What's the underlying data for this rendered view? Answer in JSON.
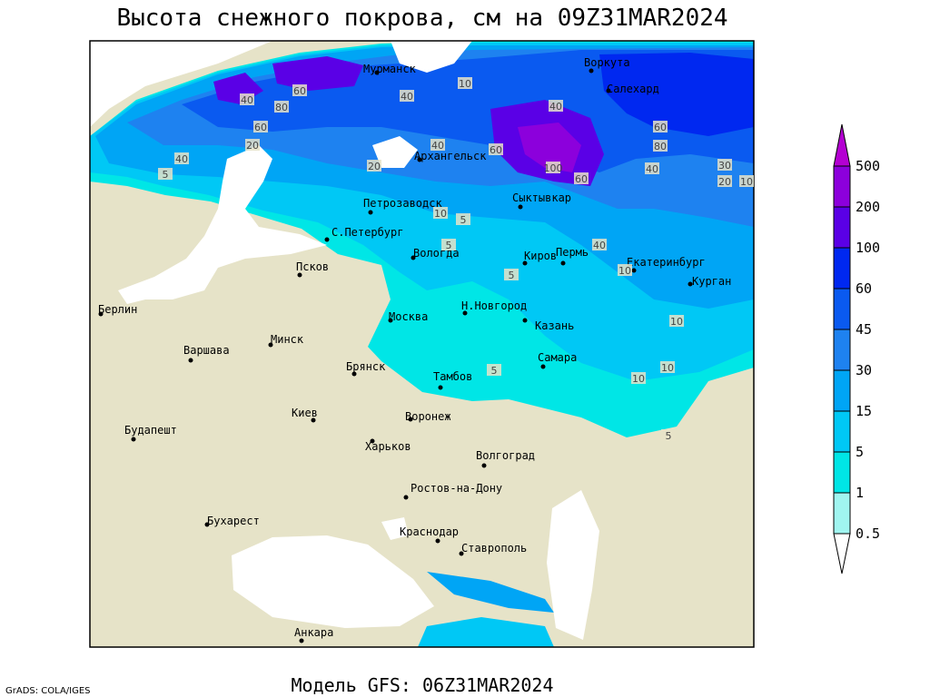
{
  "title": "Высота снежного покрова, см на 09Z31MAR2024",
  "footer": "Модель GFS: 06Z31MAR2024",
  "credit": "GrADS: COLA/IGES",
  "map": {
    "cities": [
      "Мурманск",
      "Воркута",
      "Салехард",
      "Архангельск",
      "Сыктывкар",
      "Петрозаводск",
      "С.Петербург",
      "Вологда",
      "Киров",
      "Пермь",
      "Екатеринбург",
      "Курган",
      "Псков",
      "Берлин",
      "Н.Новгород",
      "Казань",
      "Москва",
      "Минск",
      "Варшава",
      "Самара",
      "Брянск",
      "Тамбов",
      "Киев",
      "Воронеж",
      "Будапешт",
      "Харьков",
      "Волгоград",
      "Ростов-на-Дону",
      "Бухарест",
      "Краснодар",
      "Ставрополь",
      "Анкара"
    ],
    "contour_labels": [
      40,
      60,
      80,
      60,
      40,
      20,
      5,
      40,
      10,
      20,
      40,
      60,
      100,
      60,
      40,
      20,
      10,
      30,
      40,
      60,
      80,
      5,
      10,
      5,
      5,
      10,
      10,
      5,
      10,
      5,
      40,
      10
    ]
  },
  "legend": {
    "labels": [
      0.5,
      1,
      5,
      15,
      30,
      45,
      60,
      100,
      200,
      500
    ],
    "colors": [
      "#ffffff",
      "#a0f5f0",
      "#00e6e6",
      "#00c8f5",
      "#00a5f5",
      "#1e82f0",
      "#0a5af0",
      "#0028f0",
      "#5a00e6",
      "#8c00dc",
      "#b400d2"
    ]
  }
}
